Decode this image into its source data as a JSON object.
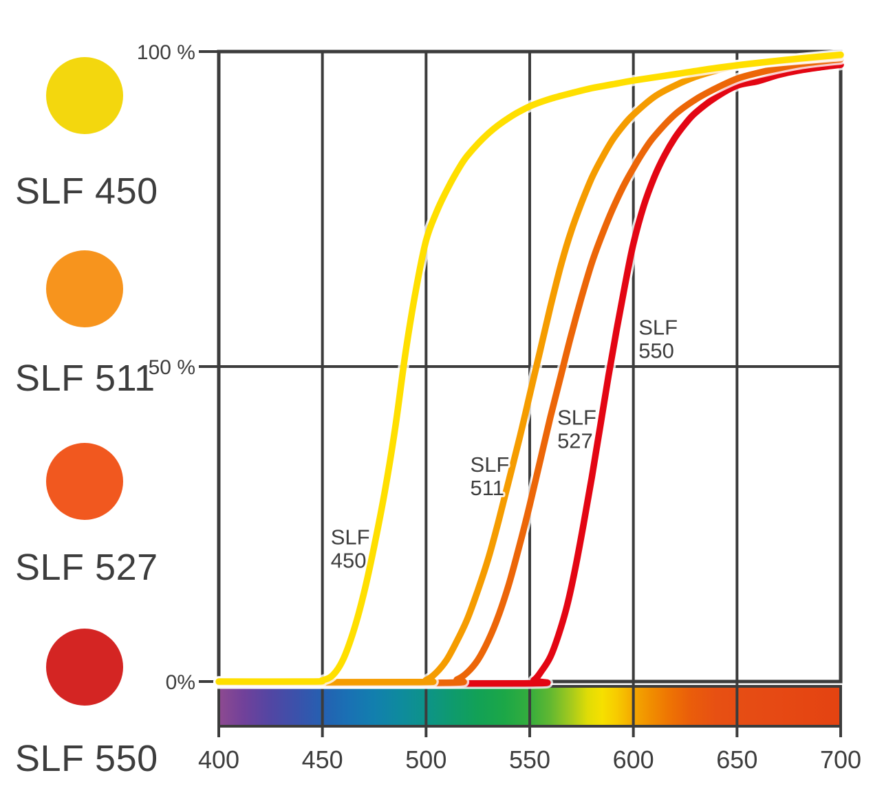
{
  "legend": {
    "items": [
      {
        "label": "SLF 450",
        "color": "#f3d70e"
      },
      {
        "label": "SLF 511",
        "color": "#f7941d"
      },
      {
        "label": "SLF 527",
        "color": "#f1581f"
      },
      {
        "label": "SLF 550",
        "color": "#d42523"
      }
    ]
  },
  "chart_data": {
    "type": "line",
    "title": "",
    "xlabel": "",
    "ylabel": "",
    "xlim": [
      400,
      700
    ],
    "ylim": [
      0,
      100
    ],
    "grid": true,
    "legend_position": "left",
    "x_ticks": [
      400,
      450,
      500,
      550,
      600,
      650,
      700
    ],
    "y_ticks": [
      {
        "value": 100,
        "label": "100 %"
      },
      {
        "value": 50,
        "label": "50 %"
      },
      {
        "value": 0,
        "label": "0%"
      }
    ],
    "series": [
      {
        "name": "SLF 450",
        "color": "#ffdf00",
        "points": [
          [
            400,
            0
          ],
          [
            445,
            0
          ],
          [
            450,
            0.2
          ],
          [
            455,
            1
          ],
          [
            460,
            3.5
          ],
          [
            465,
            8
          ],
          [
            470,
            14
          ],
          [
            475,
            21.5
          ],
          [
            480,
            30
          ],
          [
            485,
            40
          ],
          [
            490,
            52
          ],
          [
            495,
            62
          ],
          [
            500,
            70
          ],
          [
            505,
            74.5
          ],
          [
            510,
            78
          ],
          [
            515,
            81
          ],
          [
            520,
            83.5
          ],
          [
            530,
            87
          ],
          [
            540,
            89.5
          ],
          [
            550,
            91.3
          ],
          [
            560,
            92.5
          ],
          [
            570,
            93.4
          ],
          [
            580,
            94.2
          ],
          [
            590,
            94.8
          ],
          [
            600,
            95.4
          ],
          [
            620,
            96.4
          ],
          [
            640,
            97.4
          ],
          [
            660,
            98.2
          ],
          [
            680,
            98.9
          ],
          [
            700,
            99.5
          ]
        ]
      },
      {
        "name": "SLF 511",
        "color": "#f59c00",
        "points": [
          [
            400,
            0
          ],
          [
            495,
            0
          ],
          [
            500,
            0.3
          ],
          [
            505,
            1.5
          ],
          [
            510,
            3.5
          ],
          [
            515,
            6.5
          ],
          [
            520,
            10
          ],
          [
            525,
            14.5
          ],
          [
            530,
            19.5
          ],
          [
            535,
            25.5
          ],
          [
            540,
            32
          ],
          [
            545,
            38.5
          ],
          [
            550,
            45.5
          ],
          [
            555,
            52.5
          ],
          [
            560,
            59.5
          ],
          [
            565,
            66
          ],
          [
            570,
            71.5
          ],
          [
            575,
            76
          ],
          [
            580,
            80
          ],
          [
            585,
            83.2
          ],
          [
            590,
            86
          ],
          [
            595,
            88.2
          ],
          [
            600,
            90
          ],
          [
            610,
            92.8
          ],
          [
            620,
            94.6
          ],
          [
            630,
            96
          ],
          [
            640,
            97
          ],
          [
            650,
            97.8
          ],
          [
            660,
            98.2
          ],
          [
            680,
            98.8
          ],
          [
            700,
            99.3
          ]
        ]
      },
      {
        "name": "SLF 527",
        "color": "#ec6608",
        "points": [
          [
            400,
            0
          ],
          [
            508,
            0
          ],
          [
            515,
            0.5
          ],
          [
            520,
            1.6
          ],
          [
            525,
            3.5
          ],
          [
            530,
            6.5
          ],
          [
            535,
            10.5
          ],
          [
            540,
            15.5
          ],
          [
            545,
            21.5
          ],
          [
            550,
            28
          ],
          [
            555,
            35
          ],
          [
            560,
            42
          ],
          [
            565,
            48.5
          ],
          [
            570,
            55
          ],
          [
            575,
            61
          ],
          [
            580,
            66.5
          ],
          [
            585,
            71
          ],
          [
            590,
            75
          ],
          [
            595,
            78.5
          ],
          [
            600,
            81.5
          ],
          [
            605,
            84.2
          ],
          [
            610,
            86.5
          ],
          [
            620,
            90
          ],
          [
            630,
            92.4
          ],
          [
            640,
            94.2
          ],
          [
            650,
            95.7
          ],
          [
            660,
            96.6
          ],
          [
            680,
            98
          ],
          [
            700,
            98.8
          ]
        ]
      },
      {
        "name": "SLF 550",
        "color": "#e30613",
        "points": [
          [
            400,
            0
          ],
          [
            546,
            0
          ],
          [
            552,
            0.5
          ],
          [
            556,
            2
          ],
          [
            560,
            4
          ],
          [
            564,
            7.5
          ],
          [
            568,
            12
          ],
          [
            572,
            18
          ],
          [
            576,
            25
          ],
          [
            580,
            32.5
          ],
          [
            584,
            40.5
          ],
          [
            588,
            48.5
          ],
          [
            592,
            56
          ],
          [
            596,
            63
          ],
          [
            600,
            69.5
          ],
          [
            605,
            75.5
          ],
          [
            610,
            80
          ],
          [
            615,
            83.5
          ],
          [
            620,
            86.3
          ],
          [
            625,
            88.5
          ],
          [
            630,
            90.3
          ],
          [
            640,
            92.8
          ],
          [
            650,
            94.6
          ],
          [
            660,
            95.3
          ],
          [
            670,
            96.3
          ],
          [
            680,
            97
          ],
          [
            690,
            97.5
          ],
          [
            700,
            97.9
          ]
        ]
      }
    ],
    "annotations": [
      {
        "text": "SLF 450",
        "wavelength": 454,
        "percent": 24.5
      },
      {
        "text": "SLF 511",
        "wavelength": 521.3,
        "percent": 36
      },
      {
        "text": "SLF 527",
        "wavelength": 563.3,
        "percent": 43.5
      },
      {
        "text": "SLF 550",
        "wavelength": 602.5,
        "percent": 57.8
      }
    ],
    "spectrum_bar": {
      "stops": [
        {
          "wavelength": 400,
          "color": "#8e4a90"
        },
        {
          "wavelength": 412,
          "color": "#71419a"
        },
        {
          "wavelength": 425,
          "color": "#5246a3"
        },
        {
          "wavelength": 438,
          "color": "#3a52ab"
        },
        {
          "wavelength": 450,
          "color": "#2560b1"
        },
        {
          "wavelength": 462,
          "color": "#1a70b4"
        },
        {
          "wavelength": 475,
          "color": "#127fae"
        },
        {
          "wavelength": 488,
          "color": "#0e8b9d"
        },
        {
          "wavelength": 500,
          "color": "#0d9389"
        },
        {
          "wavelength": 512,
          "color": "#0e9a6f"
        },
        {
          "wavelength": 525,
          "color": "#12a156"
        },
        {
          "wavelength": 538,
          "color": "#1ca747"
        },
        {
          "wavelength": 550,
          "color": "#35ad3d"
        },
        {
          "wavelength": 560,
          "color": "#62b831"
        },
        {
          "wavelength": 570,
          "color": "#a5ca1d"
        },
        {
          "wavelength": 578,
          "color": "#e0dc06"
        },
        {
          "wavelength": 585,
          "color": "#f6e000"
        },
        {
          "wavelength": 592,
          "color": "#f7cb00"
        },
        {
          "wavelength": 600,
          "color": "#f4a800"
        },
        {
          "wavelength": 608,
          "color": "#f18f00"
        },
        {
          "wavelength": 617,
          "color": "#ee7503"
        },
        {
          "wavelength": 627,
          "color": "#ea5e0a"
        },
        {
          "wavelength": 640,
          "color": "#e75013"
        },
        {
          "wavelength": 665,
          "color": "#e64a14"
        },
        {
          "wavelength": 700,
          "color": "#e44311"
        }
      ]
    }
  },
  "colors": {
    "text": "#3d3d3d",
    "grid": "#3c3c3c",
    "background": "#ffffff",
    "curve_halo": "#ffffff"
  }
}
